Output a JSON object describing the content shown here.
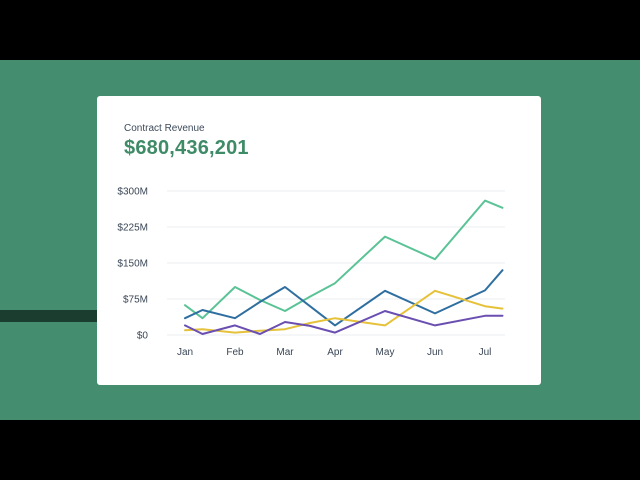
{
  "card": {
    "title": "Contract Revenue",
    "value": "$680,436,201"
  },
  "colors": {
    "background_band": "#448d6e",
    "accent_stripe": "#1b3d30",
    "value_text": "#3f8b68"
  },
  "chart_data": {
    "type": "line",
    "categories": [
      "Jan",
      "Feb",
      "Mar",
      "Apr",
      "May",
      "Jun",
      "Jul"
    ],
    "x": [
      0,
      0.35,
      1,
      1.5,
      2,
      2.5,
      3,
      4,
      5,
      6,
      6.35
    ],
    "yticks": [
      "$300M",
      "$225M",
      "$150M",
      "$75M",
      "$0"
    ],
    "ytick_values": [
      300,
      225,
      150,
      75,
      0
    ],
    "ylim": [
      0,
      300
    ],
    "grid": true,
    "series": [
      {
        "color": "#5ac396",
        "values": [
          62,
          35,
          100,
          73,
          50,
          80,
          108,
          205,
          158,
          280,
          265
        ]
      },
      {
        "color": "#2f6fa0",
        "values": [
          35,
          52,
          35,
          69,
          100,
          60,
          20,
          92,
          45,
          93,
          135
        ]
      },
      {
        "color": "#e6c13a",
        "values": [
          10,
          12,
          5,
          9,
          12,
          25,
          35,
          20,
          92,
          60,
          55
        ]
      },
      {
        "color": "#6a4fb0",
        "values": [
          20,
          2,
          20,
          2,
          27,
          19,
          5,
          50,
          20,
          40,
          40
        ]
      }
    ]
  }
}
